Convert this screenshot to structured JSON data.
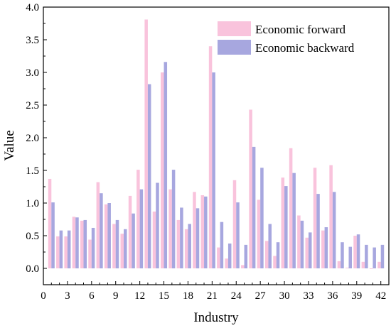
{
  "chart_data": {
    "type": "bar",
    "title": "",
    "xlabel": "Industry",
    "ylabel": "Value",
    "xlim": [
      0,
      43
    ],
    "ylim": [
      -0.25,
      4.0
    ],
    "x_ticks": [
      "0",
      "3",
      "6",
      "9",
      "12",
      "15",
      "18",
      "21",
      "24",
      "27",
      "30",
      "33",
      "36",
      "39",
      "42"
    ],
    "y_ticks": [
      "0.0",
      "0.5",
      "1.0",
      "1.5",
      "2.0",
      "2.5",
      "3.0",
      "3.5",
      "4.0"
    ],
    "grid": false,
    "legend_position": "top-right",
    "categories": [
      1,
      2,
      3,
      4,
      5,
      6,
      7,
      8,
      9,
      10,
      11,
      12,
      13,
      14,
      15,
      16,
      17,
      18,
      19,
      20,
      21,
      22,
      23,
      24,
      25,
      26,
      27,
      28,
      29,
      30,
      31,
      32,
      33,
      34,
      35,
      36,
      37,
      38,
      39,
      40,
      41,
      42
    ],
    "series": [
      {
        "name": "Economic forward",
        "color": "#f9c3dc",
        "values": [
          1.37,
          0.49,
          0.49,
          0.79,
          0.73,
          0.44,
          1.32,
          0.98,
          0.68,
          0.53,
          1.11,
          1.51,
          3.81,
          0.87,
          3.0,
          1.21,
          0.74,
          0.6,
          1.17,
          1.12,
          3.4,
          0.32,
          0.15,
          1.35,
          0.05,
          2.43,
          1.05,
          0.42,
          0.19,
          1.39,
          1.84,
          0.81,
          0.47,
          1.54,
          0.58,
          1.58,
          0.11,
          0.01,
          0.5,
          0.1,
          -0.01,
          0.1
        ]
      },
      {
        "name": "Economic backward",
        "color": "#a7a7df",
        "values": [
          1.01,
          0.58,
          0.58,
          0.78,
          0.74,
          0.62,
          1.15,
          1.0,
          0.74,
          0.6,
          0.84,
          1.21,
          2.82,
          1.31,
          3.16,
          1.51,
          0.93,
          0.68,
          0.92,
          1.1,
          3.0,
          0.71,
          0.38,
          1.01,
          0.36,
          1.86,
          1.54,
          0.68,
          0.4,
          1.26,
          1.46,
          0.73,
          0.55,
          1.14,
          0.63,
          1.17,
          0.4,
          0.33,
          0.52,
          0.36,
          0.32,
          0.36
        ]
      }
    ]
  }
}
